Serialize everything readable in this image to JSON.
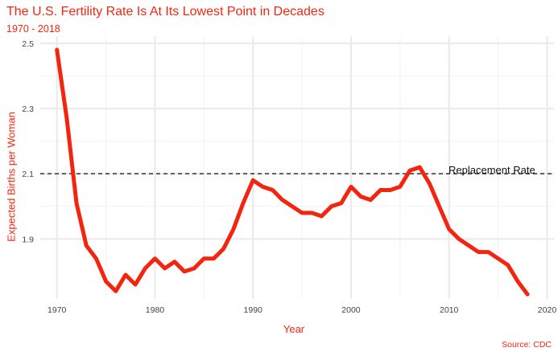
{
  "chart_data": {
    "type": "line",
    "title": "The U.S. Fertility Rate Is At Its Lowest Point in Decades",
    "subtitle": "1970 - 2018",
    "xlabel": "Year",
    "ylabel": "Expected Births per Woman",
    "caption": "Source: CDC",
    "xlim": [
      1968.3,
      2020.7
    ],
    "ylim": [
      1.716,
      2.522
    ],
    "x_ticks": [
      1970,
      1980,
      1990,
      2000,
      2010,
      2020
    ],
    "y_ticks": [
      1.9,
      2.1,
      2.3,
      2.5
    ],
    "x_tick_labels": [
      "1970",
      "1980",
      "1990",
      "2000",
      "2010",
      "2020"
    ],
    "y_tick_labels": [
      "1.9",
      "2.1",
      "2.3",
      "2.5"
    ],
    "grid": true,
    "reference_line": {
      "y": 2.1,
      "label": "Replacement Rate",
      "style": "dashed"
    },
    "series": [
      {
        "color": "#f4250f",
        "x": [
          1970,
          1971,
          1972,
          1973,
          1974,
          1975,
          1976,
          1977,
          1978,
          1979,
          1980,
          1981,
          1982,
          1983,
          1984,
          1985,
          1986,
          1987,
          1988,
          1989,
          1990,
          1991,
          1992,
          1993,
          1994,
          1995,
          1996,
          1997,
          1998,
          1999,
          2000,
          2001,
          2002,
          2003,
          2004,
          2005,
          2006,
          2007,
          2008,
          2009,
          2010,
          2011,
          2012,
          2013,
          2014,
          2015,
          2016,
          2017,
          2018
        ],
        "y": [
          2.48,
          2.27,
          2.01,
          1.88,
          1.84,
          1.77,
          1.74,
          1.79,
          1.76,
          1.81,
          1.84,
          1.81,
          1.83,
          1.8,
          1.81,
          1.84,
          1.84,
          1.87,
          1.93,
          2.01,
          2.08,
          2.06,
          2.05,
          2.02,
          2.0,
          1.98,
          1.98,
          1.97,
          2.0,
          2.01,
          2.06,
          2.03,
          2.02,
          2.05,
          2.05,
          2.06,
          2.11,
          2.12,
          2.07,
          2.0,
          1.93,
          1.9,
          1.88,
          1.86,
          1.86,
          1.84,
          1.82,
          1.77,
          1.73
        ]
      }
    ]
  }
}
